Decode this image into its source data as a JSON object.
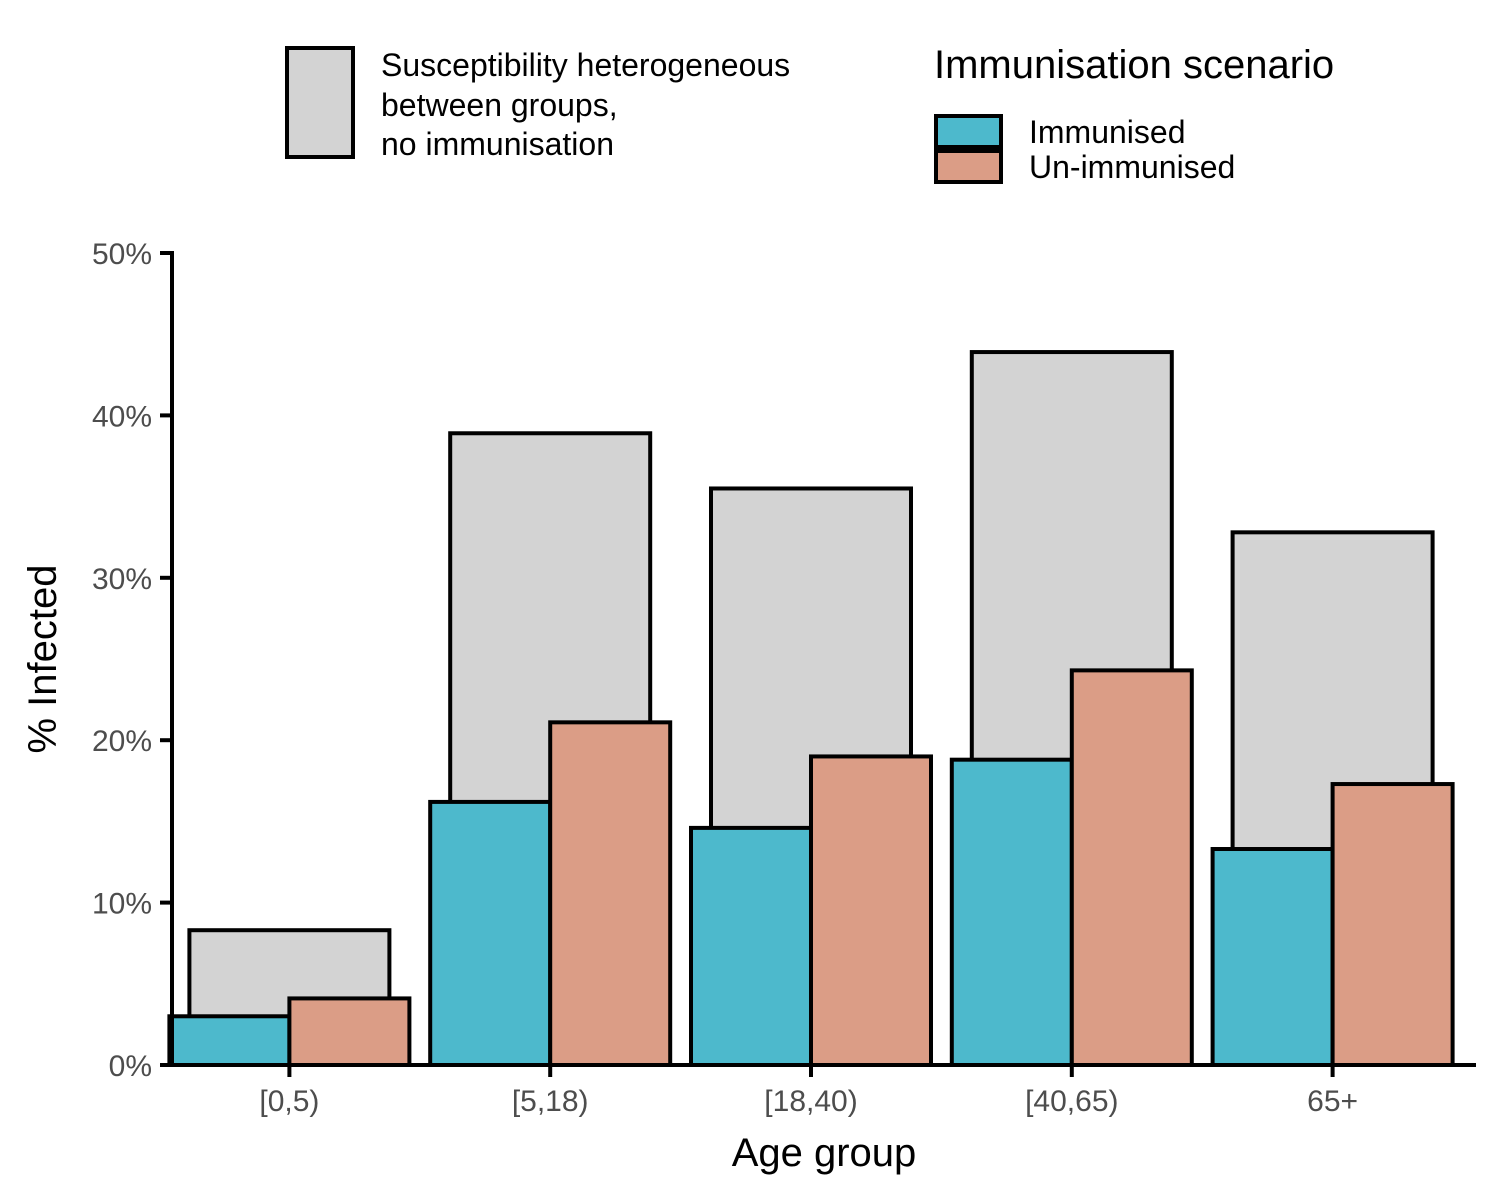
{
  "chart_data": {
    "type": "bar",
    "categories": [
      "[0,5)",
      "[5,18)",
      "[18,40)",
      "[40,65)",
      "65+"
    ],
    "background_series": {
      "name_lines": [
        "Susceptibility heterogeneous",
        "between groups,",
        "no immunisation"
      ],
      "color": "#d3d3d3",
      "values": [
        8.3,
        38.9,
        35.5,
        43.9,
        32.8
      ]
    },
    "series": [
      {
        "name": "Immunised",
        "color": "#4db9cc",
        "values": [
          3.0,
          16.2,
          14.6,
          18.8,
          13.3
        ]
      },
      {
        "name": "Un-immunised",
        "color": "#db9d86",
        "values": [
          4.1,
          21.1,
          19.0,
          24.3,
          17.3
        ]
      }
    ],
    "legend_title": "Immunisation scenario",
    "xlabel": "Age group",
    "ylabel": "% Infected",
    "yticks": [
      "0%",
      "10%",
      "20%",
      "30%",
      "40%",
      "50%"
    ],
    "ytick_values": [
      0,
      10,
      20,
      30,
      40,
      50
    ],
    "ylim": [
      0,
      50
    ],
    "grid": false,
    "legend_position": "top"
  }
}
